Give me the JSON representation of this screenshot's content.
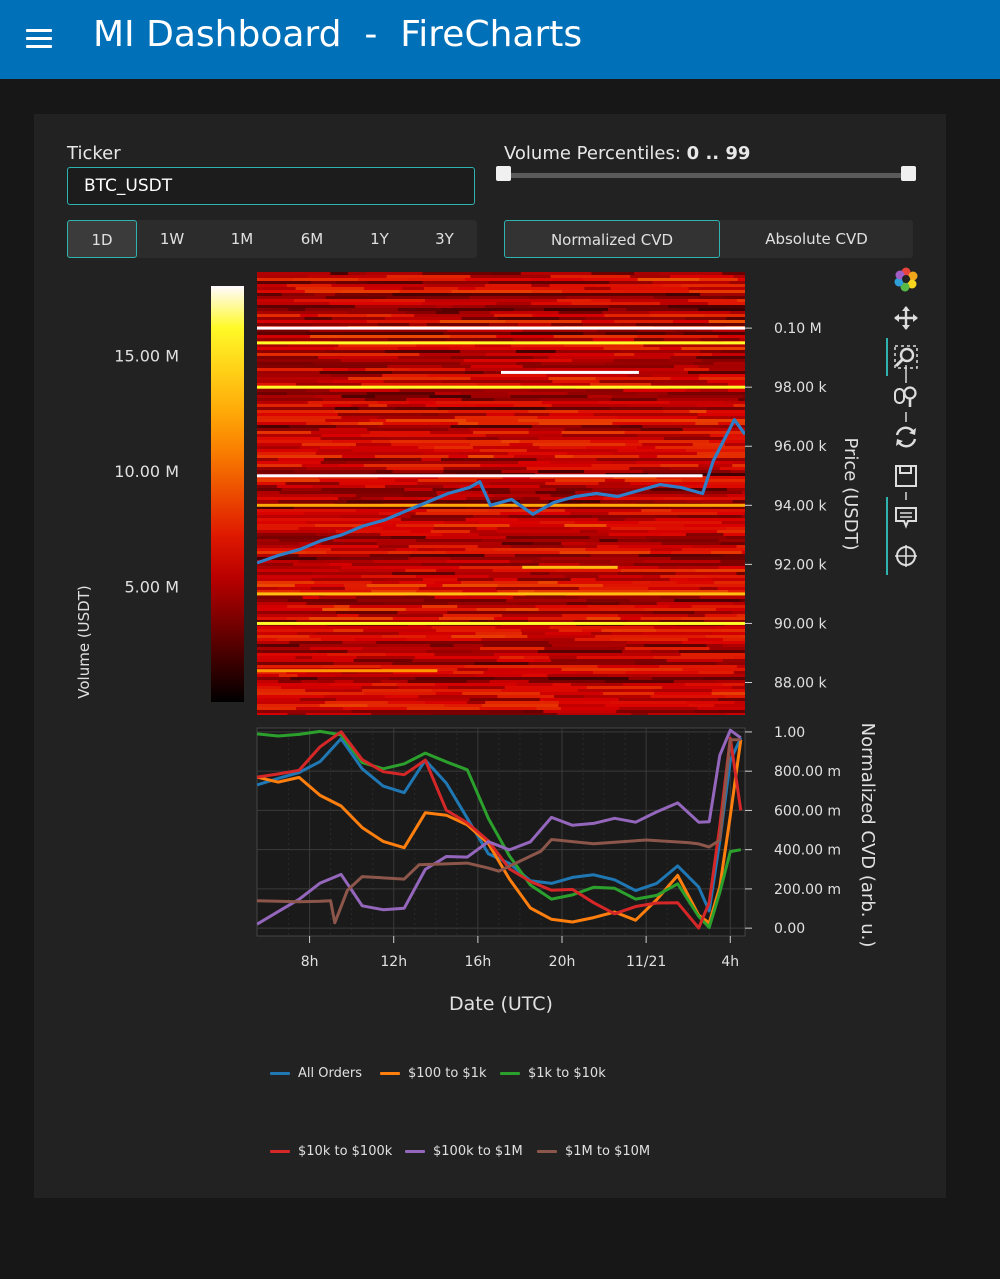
{
  "header": {
    "title": "MI Dashboard  -  FireCharts"
  },
  "ticker": {
    "label": "Ticker",
    "value": "BTC_USDT"
  },
  "volume_percentiles": {
    "label": "Volume Percentiles:",
    "value": "0 .. 99",
    "low": 0,
    "high": 99
  },
  "time_ranges": [
    {
      "label": "1D",
      "active": true
    },
    {
      "label": "1W",
      "active": false
    },
    {
      "label": "1M",
      "active": false
    },
    {
      "label": "6M",
      "active": false
    },
    {
      "label": "1Y",
      "active": false
    },
    {
      "label": "3Y",
      "active": false
    }
  ],
  "cvd_modes": [
    {
      "label": "Normalized CVD",
      "active": true
    },
    {
      "label": "Absolute CVD",
      "active": false
    }
  ],
  "toolbar": [
    "logo-icon",
    "pan-icon",
    "box-zoom-icon",
    "wheel-zoom-icon",
    "reset-icon",
    "save-icon",
    "hover-icon",
    "crosshair-icon"
  ],
  "chart_data": [
    {
      "type": "heatmap",
      "colorbar": {
        "label": "Volume (USDT)",
        "ticks": [
          "15.00 M",
          "10.00 M",
          "5.00 M"
        ],
        "tick_values": [
          15,
          10,
          5
        ],
        "range": [
          0,
          18
        ],
        "colormap": "fire"
      },
      "y_axis": {
        "label": "Price (USDT)",
        "ticks": [
          "0.10 M",
          "98.00 k",
          "96.00 k",
          "94.00 k",
          "92.00 k",
          "90.00 k",
          "88.00 k"
        ],
        "tick_values": [
          100000,
          98000,
          96000,
          94000,
          92000,
          90000,
          88000
        ],
        "range": [
          86900,
          101900
        ]
      },
      "x_range": [
        5.5,
        28.5
      ],
      "bright_levels": [
        {
          "price": 100000,
          "start": 5.5,
          "end": 28.5,
          "intensity": 1.0
        },
        {
          "price": 99500,
          "start": 5.5,
          "end": 28.5,
          "intensity": 0.9
        },
        {
          "price": 98500,
          "start": 17,
          "end": 23.5,
          "intensity": 1.0
        },
        {
          "price": 98000,
          "start": 5.5,
          "end": 28.5,
          "intensity": 0.9
        },
        {
          "price": 95000,
          "start": 5.5,
          "end": 26.5,
          "intensity": 1.0
        },
        {
          "price": 94000,
          "start": 5.5,
          "end": 28.5,
          "intensity": 0.7
        },
        {
          "price": 91900,
          "start": 18,
          "end": 22.5,
          "intensity": 0.75
        },
        {
          "price": 91000,
          "start": 5.5,
          "end": 28.5,
          "intensity": 0.75
        },
        {
          "price": 90000,
          "start": 5.5,
          "end": 28.5,
          "intensity": 0.9
        },
        {
          "price": 88400,
          "start": 5.5,
          "end": 14,
          "intensity": 0.65
        }
      ],
      "price_line": {
        "x": [
          5.5,
          6.5,
          7.5,
          8.5,
          9.5,
          10.5,
          11.5,
          12.5,
          13.5,
          14.5,
          15.5,
          16,
          16.5,
          17.5,
          18.5,
          19.5,
          20.5,
          21.5,
          22.5,
          23.5,
          24.5,
          25.5,
          26.5,
          27,
          27.5,
          28,
          28.5
        ],
        "y": [
          92050,
          92300,
          92500,
          92800,
          93000,
          93300,
          93500,
          93800,
          94100,
          94400,
          94600,
          94800,
          94000,
          94200,
          93700,
          94100,
          94300,
          94400,
          94300,
          94500,
          94700,
          94600,
          94400,
          95500,
          96200,
          96900,
          96400
        ]
      }
    },
    {
      "type": "line",
      "xlabel": "Date (UTC)",
      "ylabel": "Normalized CVD (arb. u.)",
      "x_ticks": [
        "8h",
        "12h",
        "16h",
        "20h",
        "11/21",
        "4h"
      ],
      "x_tick_values": [
        8,
        12,
        16,
        20,
        24,
        28
      ],
      "y_ticks": [
        "1.00",
        "800.00 m",
        "600.00 m",
        "400.00 m",
        "200.00 m",
        "0.00"
      ],
      "y_tick_values": [
        1.0,
        0.8,
        0.6,
        0.4,
        0.2,
        0.0
      ],
      "xlim": [
        5.5,
        28.7
      ],
      "ylim": [
        -0.04,
        1.02
      ],
      "series": [
        {
          "name": "All Orders",
          "color": "#1f77b4",
          "x": [
            5.5,
            6.5,
            7.5,
            8.5,
            9.5,
            10.5,
            11.5,
            12.5,
            13.5,
            14.5,
            15.5,
            16.5,
            17.5,
            18.5,
            19.5,
            20.5,
            21.5,
            22.5,
            23.5,
            24.5,
            25.5,
            26.5,
            27,
            27.5,
            28,
            28.5
          ],
          "y": [
            0.73,
            0.77,
            0.8,
            0.85,
            0.96,
            0.8,
            0.73,
            0.69,
            0.86,
            0.74,
            0.55,
            0.38,
            0.34,
            0.25,
            0.23,
            0.26,
            0.28,
            0.24,
            0.18,
            0.23,
            0.32,
            0.22,
            0.08,
            0.45,
            0.85,
            0.97
          ]
        },
        {
          "name": "$100 to $1k",
          "color": "#ff7f0e",
          "x": [
            5.5,
            6.5,
            7.5,
            8.5,
            9.5,
            10.5,
            11.5,
            12.5,
            13.5,
            14.5,
            15.5,
            16.5,
            17.5,
            18.5,
            19.5,
            20.5,
            21.5,
            22.5,
            23.5,
            24.5,
            25.5,
            26.5,
            27,
            27.5,
            28,
            28.5
          ],
          "y": [
            0.77,
            0.75,
            0.78,
            0.68,
            0.62,
            0.52,
            0.44,
            0.41,
            0.58,
            0.58,
            0.52,
            0.42,
            0.26,
            0.09,
            0.04,
            0.02,
            0.06,
            0.08,
            0.03,
            0.15,
            0.28,
            0.07,
            0.02,
            0.22,
            0.58,
            0.96
          ]
        },
        {
          "name": "$1k to $10k",
          "color": "#2ca02c",
          "x": [
            5.5,
            6.5,
            7.5,
            8.5,
            9.5,
            10.5,
            11.5,
            12.5,
            13.5,
            14.5,
            15.5,
            16.5,
            17.5,
            18.5,
            19.5,
            20.5,
            21.5,
            22.5,
            23.5,
            24.5,
            25.5,
            26.5,
            27,
            27.5,
            28,
            28.5
          ],
          "y": [
            0.99,
            0.98,
            0.99,
            0.99,
            0.98,
            0.85,
            0.8,
            0.83,
            0.89,
            0.86,
            0.8,
            0.55,
            0.37,
            0.22,
            0.14,
            0.16,
            0.2,
            0.2,
            0.14,
            0.16,
            0.22,
            0.05,
            0.0,
            0.18,
            0.38,
            0.4
          ]
        },
        {
          "name": "$10k to $100k",
          "color": "#d62728",
          "x": [
            5.5,
            6.5,
            7.5,
            8.5,
            9.5,
            10.5,
            11.5,
            12.5,
            13.5,
            14.5,
            15.5,
            16.5,
            17.5,
            18.5,
            19.5,
            20.5,
            21.5,
            22.5,
            23.5,
            24.5,
            25.5,
            26.5,
            27,
            27.5,
            28,
            28.5
          ],
          "y": [
            0.77,
            0.78,
            0.81,
            0.93,
            0.99,
            0.87,
            0.8,
            0.78,
            0.85,
            0.6,
            0.53,
            0.45,
            0.3,
            0.24,
            0.2,
            0.2,
            0.14,
            0.08,
            0.12,
            0.14,
            0.13,
            0.0,
            0.13,
            0.52,
            0.98,
            0.6
          ]
        },
        {
          "name": "$100k to $1M",
          "color": "#9467bd",
          "x": [
            5.5,
            6.5,
            7.5,
            8.5,
            9.5,
            10.5,
            11.5,
            12.5,
            13.5,
            14.5,
            15.5,
            16.5,
            17.5,
            18.5,
            19.5,
            20.5,
            21.5,
            22.5,
            23.5,
            24.5,
            25.5,
            26.5,
            27,
            27.5,
            28,
            28.5
          ],
          "y": [
            0.02,
            0.08,
            0.14,
            0.24,
            0.28,
            0.12,
            0.1,
            0.1,
            0.3,
            0.36,
            0.37,
            0.45,
            0.41,
            0.43,
            0.56,
            0.52,
            0.53,
            0.55,
            0.53,
            0.6,
            0.64,
            0.53,
            0.54,
            0.88,
            1.0,
            0.97
          ]
        },
        {
          "name": "$1M to $10M",
          "color": "#8c564b",
          "x": [
            5.5,
            7.5,
            8.5,
            9.0,
            9.2,
            9.8,
            10.5,
            12.5,
            13.2,
            15.5,
            16.5,
            17.0,
            19.0,
            19.5,
            21.5,
            24.0,
            26.0,
            26.5,
            27.0,
            27.5,
            28.0,
            28.5
          ],
          "y": [
            0.14,
            0.14,
            0.14,
            0.14,
            0.02,
            0.2,
            0.26,
            0.26,
            0.33,
            0.33,
            0.3,
            0.28,
            0.38,
            0.44,
            0.44,
            0.44,
            0.44,
            0.42,
            0.42,
            0.44,
            0.95,
            0.96
          ]
        }
      ]
    }
  ]
}
